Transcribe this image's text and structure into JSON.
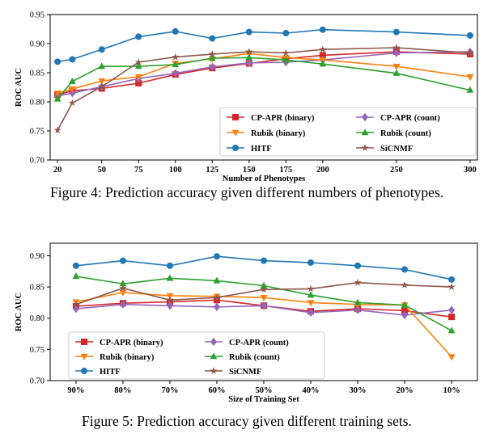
{
  "chart_data": [
    {
      "type": "line",
      "xlabel": "Number of Phenotypes",
      "ylabel": "ROC AUC",
      "categories": [
        "20",
        "30",
        "50",
        "75",
        "100",
        "125",
        "150",
        "175",
        "200",
        "250",
        "300"
      ],
      "x": [
        20,
        30,
        50,
        75,
        100,
        125,
        150,
        175,
        200,
        250,
        300
      ],
      "xticks": [
        20,
        50,
        75,
        100,
        125,
        150,
        175,
        200,
        250,
        300
      ],
      "xlim": [
        15,
        305
      ],
      "ylim": [
        0.7,
        0.95
      ],
      "yticks": [
        "0.70",
        "0.75",
        "0.80",
        "0.85",
        "0.90",
        "0.95"
      ],
      "ytick_values": [
        0.7,
        0.75,
        0.8,
        0.85,
        0.9,
        0.95
      ],
      "grid": false,
      "legend_position": "lower-right",
      "series": [
        {
          "name": "CP-APR (binary)",
          "color": "#d62728",
          "marker": "square",
          "values": [
            0.812,
            0.819,
            0.823,
            0.832,
            0.847,
            0.858,
            0.866,
            0.874,
            0.88,
            0.886,
            0.882
          ]
        },
        {
          "name": "CP-APR (count)",
          "color": "#9467bd",
          "marker": "diamond",
          "values": [
            0.81,
            0.815,
            0.826,
            0.84,
            0.849,
            0.86,
            0.867,
            0.868,
            0.872,
            0.884,
            0.886
          ]
        },
        {
          "name": "Rubik (binary)",
          "color": "#ff7f0e",
          "marker": "tri-down",
          "values": [
            0.815,
            0.822,
            0.836,
            0.843,
            0.866,
            0.874,
            0.883,
            0.876,
            0.872,
            0.861,
            0.843
          ]
        },
        {
          "name": "Rubik (count)",
          "color": "#2ca02c",
          "marker": "tri-up",
          "values": [
            0.805,
            0.835,
            0.861,
            0.861,
            0.864,
            0.875,
            0.876,
            0.872,
            0.865,
            0.849,
            0.82
          ]
        },
        {
          "name": "HITF",
          "color": "#1f77b4",
          "marker": "circle",
          "values": [
            0.869,
            0.873,
            0.89,
            0.912,
            0.921,
            0.909,
            0.92,
            0.918,
            0.924,
            0.92,
            0.914
          ]
        },
        {
          "name": "SiCNMF",
          "color": "#8c564b",
          "marker": "star",
          "values": [
            0.751,
            0.798,
            0.826,
            0.868,
            0.877,
            0.882,
            0.886,
            0.884,
            0.89,
            0.893,
            0.884
          ]
        }
      ]
    },
    {
      "type": "line",
      "xlabel": "Size of Training Set",
      "ylabel": "ROC AUC",
      "categories": [
        "90%",
        "80%",
        "70%",
        "60%",
        "50%",
        "40%",
        "30%",
        "20%",
        "10%"
      ],
      "ylim": [
        0.7,
        0.92
      ],
      "yticks": [
        "0.70",
        "0.75",
        "0.80",
        "0.85",
        "0.90"
      ],
      "ytick_values": [
        0.7,
        0.75,
        0.8,
        0.85,
        0.9
      ],
      "grid": false,
      "legend_position": "lower-left",
      "series": [
        {
          "name": "CP-APR (binary)",
          "color": "#d62728",
          "marker": "square",
          "values": [
            0.819,
            0.824,
            0.826,
            0.829,
            0.82,
            0.811,
            0.815,
            0.812,
            0.802
          ]
        },
        {
          "name": "CP-APR (count)",
          "color": "#9467bd",
          "marker": "diamond",
          "values": [
            0.815,
            0.822,
            0.82,
            0.818,
            0.82,
            0.809,
            0.813,
            0.805,
            0.813
          ]
        },
        {
          "name": "Rubik (binary)",
          "color": "#ff7f0e",
          "marker": "tri-down",
          "values": [
            0.826,
            0.841,
            0.836,
            0.835,
            0.833,
            0.825,
            0.822,
            0.821,
            0.738
          ]
        },
        {
          "name": "Rubik (count)",
          "color": "#2ca02c",
          "marker": "tri-up",
          "values": [
            0.867,
            0.855,
            0.864,
            0.86,
            0.852,
            0.837,
            0.825,
            0.821,
            0.78
          ]
        },
        {
          "name": "HITF",
          "color": "#1f77b4",
          "marker": "circle",
          "values": [
            0.884,
            0.892,
            0.884,
            0.899,
            0.892,
            0.889,
            0.884,
            0.878,
            0.862
          ]
        },
        {
          "name": "SiCNMF",
          "color": "#8c564b",
          "marker": "star",
          "values": [
            0.822,
            0.848,
            0.829,
            0.833,
            0.846,
            0.847,
            0.857,
            0.853,
            0.85
          ]
        }
      ]
    }
  ],
  "captions": [
    "Figure 4:  Prediction accuracy given different numbers of phenotypes.",
    "Figure 5: Prediction accuracy given different training sets."
  ]
}
